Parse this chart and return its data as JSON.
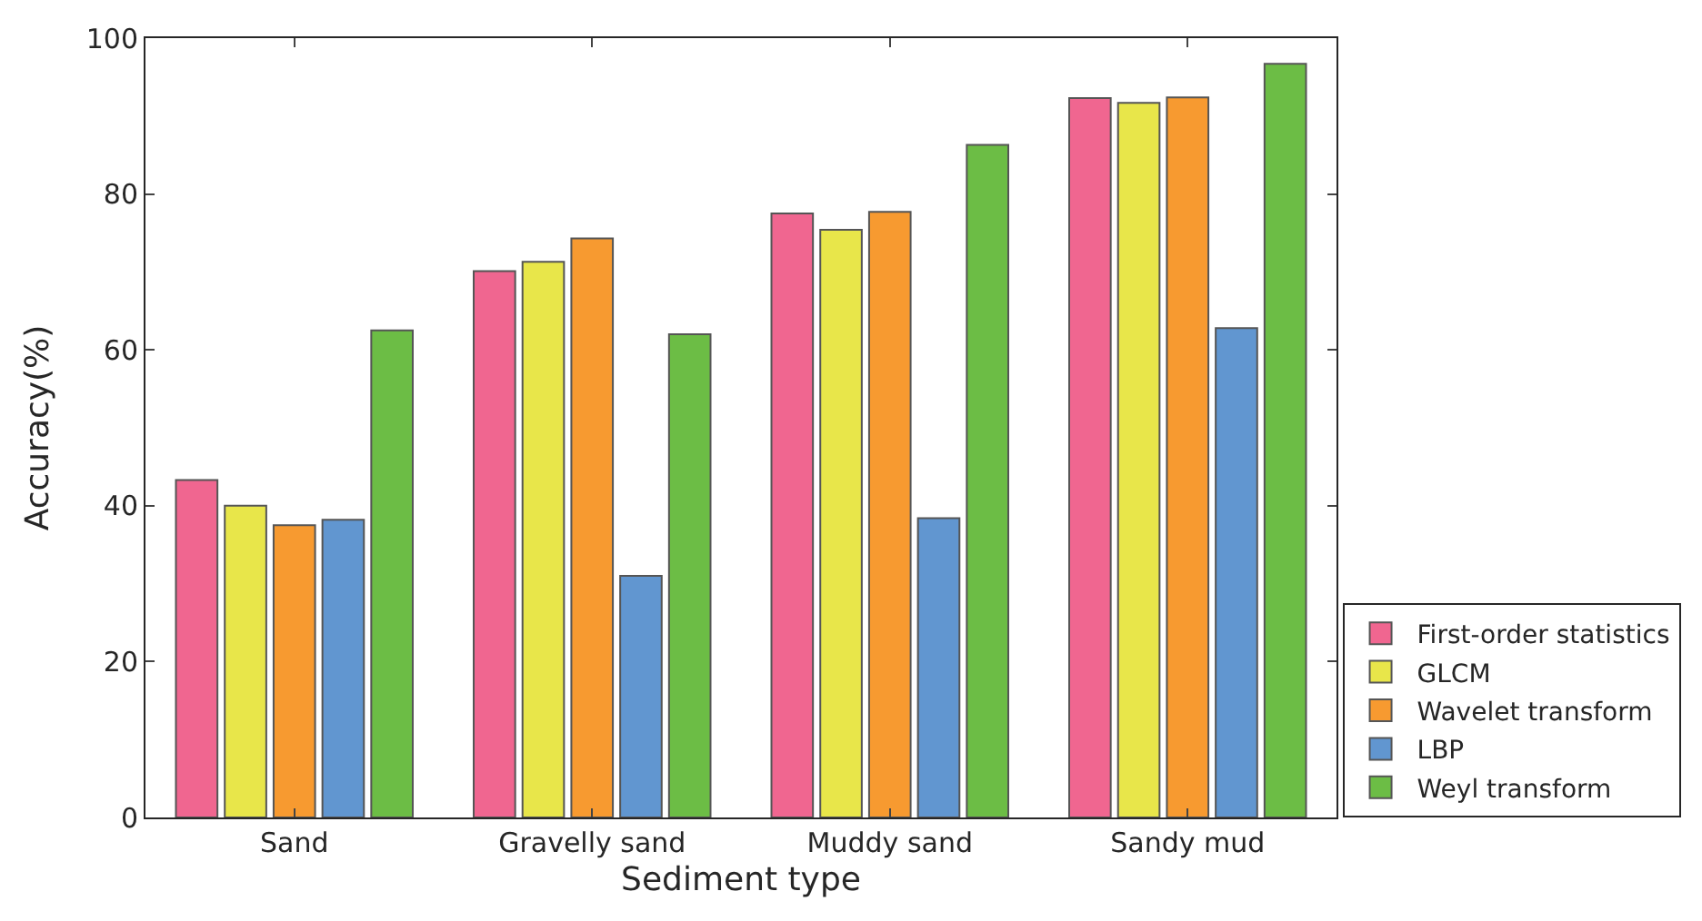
{
  "chart_data": {
    "type": "bar",
    "xlabel": "Sediment type",
    "ylabel": "Accuracy(%)",
    "categories": [
      "Sand",
      "Gravelly sand",
      "Muddy sand",
      "Sandy mud"
    ],
    "series": [
      {
        "name": "First-order statistics",
        "color": "#f06690",
        "values": [
          43.3,
          70.1,
          77.5,
          92.3
        ]
      },
      {
        "name": "GLCM",
        "color": "#e8e64a",
        "values": [
          40.0,
          71.3,
          75.4,
          91.7
        ]
      },
      {
        "name": "Wavelet transform",
        "color": "#f79a30",
        "values": [
          37.5,
          74.3,
          77.7,
          92.4
        ]
      },
      {
        "name": "LBP",
        "color": "#6196d0",
        "values": [
          38.2,
          31.0,
          38.4,
          62.8
        ]
      },
      {
        "name": "Weyl transform",
        "color": "#6cbd45",
        "values": [
          62.5,
          62.0,
          86.3,
          96.7
        ]
      }
    ],
    "ylim": [
      0,
      100
    ],
    "yticks": [
      0,
      20,
      40,
      60,
      80,
      100
    ],
    "legend": "bottom right"
  }
}
